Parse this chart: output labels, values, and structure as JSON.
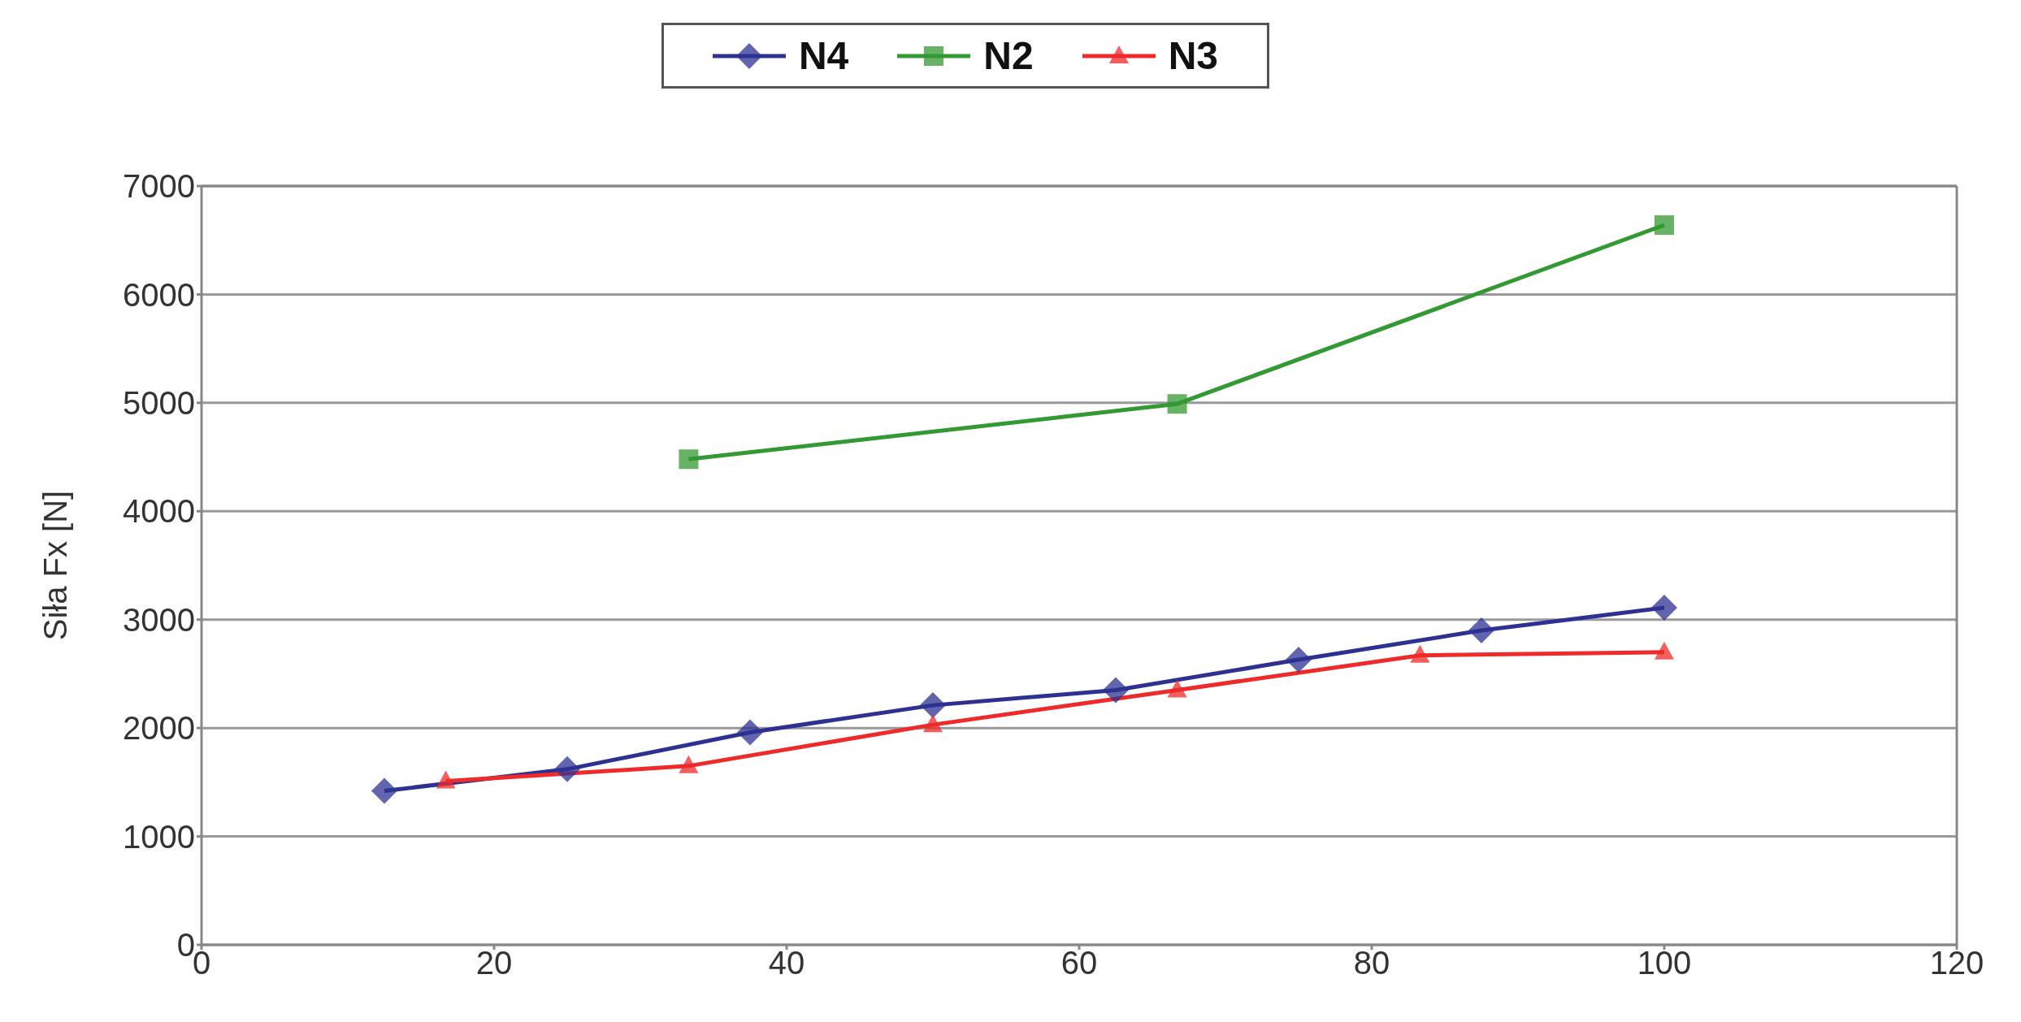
{
  "chart_data": {
    "type": "line",
    "ylabel": "Siła Fx [N]",
    "xlim": [
      0,
      120
    ],
    "xticks": [
      0,
      20,
      40,
      60,
      80,
      100,
      120
    ],
    "ylim": [
      0,
      7000
    ],
    "yticks": [
      0,
      1000,
      2000,
      3000,
      4000,
      5000,
      6000,
      7000
    ],
    "grid": "y",
    "legend": "top",
    "line_style": "solid",
    "series": [
      {
        "name": "N4",
        "color": "#2e3192",
        "marker": "diamond",
        "x": [
          12.5,
          25,
          37.5,
          50,
          62.5,
          75,
          87.5,
          100
        ],
        "values": [
          1420,
          1620,
          1960,
          2210,
          2350,
          2630,
          2900,
          3110
        ]
      },
      {
        "name": "N2",
        "color": "#339933",
        "marker": "square",
        "x": [
          33.3,
          66.7,
          100
        ],
        "values": [
          4480,
          4990,
          6640
        ]
      },
      {
        "name": "N3",
        "color": "#ee2a2a",
        "marker": "triangle",
        "x": [
          16.7,
          33.3,
          50,
          66.7,
          83.3,
          100
        ],
        "values": [
          1510,
          1650,
          2030,
          2350,
          2670,
          2700
        ]
      }
    ]
  }
}
